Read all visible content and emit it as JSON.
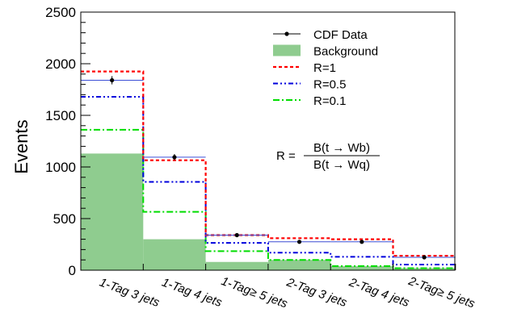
{
  "colors": {
    "background": "#8fcc8f",
    "data": "#000000",
    "r1": "#ff0000",
    "r05": "#0000dd",
    "r01": "#00dd00",
    "data_outline": "#3b4fd6"
  },
  "chart_data": {
    "type": "bar",
    "title": "",
    "xlabel": "",
    "ylabel": "Events",
    "ylim": [
      0,
      2500
    ],
    "yticks": [
      0,
      500,
      1000,
      1500,
      2000,
      2500
    ],
    "categories": [
      "1-Tag 3 jets",
      "1-Tag 4 jets",
      "1-Tag≥ 5 jets",
      "2-Tag 3 jets",
      "2-Tag 4 jets",
      "2-Tag≥ 5 jets"
    ],
    "series": [
      {
        "name": "CDF Data",
        "values": [
          1840,
          1095,
          340,
          275,
          275,
          125
        ],
        "errors": [
          40,
          30,
          15,
          15,
          15,
          10
        ]
      },
      {
        "name": "Background",
        "values": [
          1130,
          300,
          80,
          100,
          40,
          20
        ]
      },
      {
        "name": "R=1",
        "values": [
          1925,
          1065,
          340,
          310,
          300,
          140
        ]
      },
      {
        "name": "R=0.5",
        "values": [
          1680,
          855,
          265,
          170,
          130,
          55
        ]
      },
      {
        "name": "R=0.1",
        "values": [
          1360,
          565,
          185,
          100,
          40,
          20
        ]
      }
    ],
    "legend": {
      "position": "top-right",
      "entries": [
        "CDF Data",
        "Background",
        "R=1",
        "R=0.5",
        "R=0.1"
      ]
    },
    "annotation": {
      "lhs": "R =",
      "numerator": "B(t → Wb)",
      "denominator": "B(t → Wq)"
    }
  }
}
